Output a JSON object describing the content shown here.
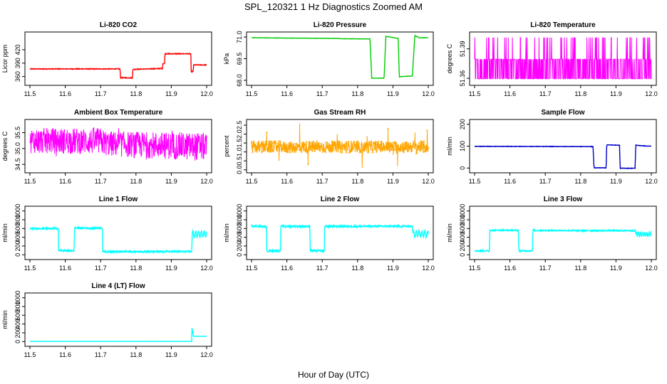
{
  "figure": {
    "title": "SPL_120321  1 Hz Diagnostics Zoomed AM",
    "xlabel": "Hour of Day (UTC)"
  },
  "chart_data": [
    {
      "type": "line",
      "title": "Li-820 CO2",
      "ylabel": "Licor ppm",
      "color": "#ff0000",
      "xlim": [
        11.5,
        12.0
      ],
      "ylim": [
        345,
        455
      ],
      "xticks": [
        "11.5",
        "11.6",
        "11.7",
        "11.8",
        "11.9",
        "12.0"
      ],
      "yticks": [
        {
          "v": 360,
          "label": "360"
        },
        {
          "v": 390,
          "label": "390"
        },
        {
          "v": 420,
          "label": "420"
        }
      ],
      "noise": 0.8,
      "segments": [
        [
          11.5,
          377
        ],
        [
          11.755,
          377
        ],
        [
          11.756,
          357
        ],
        [
          11.79,
          357
        ],
        [
          11.791,
          376
        ],
        [
          11.875,
          378
        ],
        [
          11.876,
          389
        ],
        [
          11.881,
          389
        ],
        [
          11.882,
          411
        ],
        [
          11.955,
          411
        ],
        [
          11.955,
          427
        ],
        [
          11.956,
          371
        ],
        [
          11.962,
          371
        ],
        [
          11.963,
          386
        ],
        [
          12.0,
          386
        ]
      ]
    },
    {
      "type": "line",
      "title": "Li-820 Pressure",
      "ylabel": "kPa",
      "color": "#00cc00",
      "xlim": [
        11.5,
        12.0
      ],
      "ylim": [
        67.8,
        71.2
      ],
      "xticks": [
        "11.5",
        "11.6",
        "11.7",
        "11.8",
        "11.9",
        "12.0"
      ],
      "yticks": [
        {
          "v": 68.0,
          "label": "68.0"
        },
        {
          "v": 69.5,
          "label": "69.5"
        },
        {
          "v": 71.0,
          "label": "71.0"
        }
      ],
      "noise": 0.01,
      "segments": [
        [
          11.5,
          70.95
        ],
        [
          11.75,
          70.9
        ],
        [
          11.751,
          70.88
        ],
        [
          11.835,
          70.87
        ],
        [
          11.84,
          68.15
        ],
        [
          11.875,
          68.15
        ],
        [
          11.88,
          71.05
        ],
        [
          11.915,
          70.9
        ],
        [
          11.918,
          68.25
        ],
        [
          11.955,
          68.3
        ],
        [
          11.962,
          71.1
        ],
        [
          11.975,
          70.95
        ],
        [
          12.0,
          70.95
        ]
      ]
    },
    {
      "type": "line",
      "title": "Li-820 Temperature",
      "ylabel": "degrees C",
      "color": "#ff00ff",
      "xlim": [
        11.5,
        12.0
      ],
      "ylim": [
        51.355,
        51.405
      ],
      "xticks": [
        "11.5",
        "11.6",
        "11.7",
        "11.8",
        "11.9",
        "12.0"
      ],
      "yticks": [
        {
          "v": 51.36,
          "label": "51.36"
        },
        {
          "v": 51.39,
          "label": "51.39"
        }
      ],
      "quantized": {
        "low": 51.3595,
        "mid": 51.3795,
        "high": 51.4015,
        "pHigh": 0.09,
        "pLow": 0.5
      }
    },
    {
      "type": "line",
      "title": "Ambient Box Temperature",
      "ylabel": "degrees C",
      "color": "#ff00ff",
      "xlim": [
        11.5,
        12.0
      ],
      "ylim": [
        34.3,
        35.85
      ],
      "xticks": [
        "11.5",
        "11.6",
        "11.7",
        "11.8",
        "11.9",
        "12.0"
      ],
      "yticks": [
        {
          "v": 34.5,
          "label": "34.5"
        },
        {
          "v": 35.0,
          "label": "35.0"
        },
        {
          "v": 35.5,
          "label": "35.5"
        }
      ],
      "band": [
        [
          11.5,
          34.85,
          35.65
        ],
        [
          11.7,
          34.8,
          35.65
        ],
        [
          11.72,
          34.75,
          35.55
        ],
        [
          12.0,
          34.6,
          35.5
        ]
      ]
    },
    {
      "type": "line",
      "title": "Gas Stream RH",
      "ylabel": "percent",
      "color": "#ffa500",
      "markers": true,
      "xlim": [
        11.5,
        12.0
      ],
      "ylim": [
        -0.05,
        2.7
      ],
      "xticks": [
        "11.5",
        "11.6",
        "11.7",
        "11.8",
        "11.9",
        "12.0"
      ],
      "yticks": [
        {
          "v": 0.0,
          "label": "0.0"
        },
        {
          "v": 0.5,
          "label": "0.5"
        },
        {
          "v": 1.0,
          "label": "1.0"
        },
        {
          "v": 1.5,
          "label": "1.5"
        },
        {
          "v": 2.0,
          "label": "2.0"
        },
        {
          "v": 2.5,
          "label": "2.5"
        }
      ],
      "band": [
        [
          11.5,
          0.95,
          1.6
        ],
        [
          12.0,
          0.95,
          1.6
        ]
      ],
      "spikes": [
        [
          11.543,
          2.1
        ],
        [
          11.578,
          0.5
        ],
        [
          11.636,
          2.6
        ],
        [
          11.66,
          0.3
        ],
        [
          11.742,
          2.0
        ],
        [
          11.813,
          0.1
        ],
        [
          11.827,
          1.9
        ],
        [
          11.886,
          2.3
        ],
        [
          11.913,
          0.2
        ],
        [
          11.962,
          2.1
        ],
        [
          11.997,
          2.2
        ]
      ]
    },
    {
      "type": "line",
      "title": "Sample Flow",
      "ylabel": "ml/min",
      "color": "#0000cc",
      "xlim": [
        11.5,
        12.0
      ],
      "ylim": [
        -12,
        212
      ],
      "xticks": [
        "11.5",
        "11.6",
        "11.7",
        "11.8",
        "11.9",
        "12.0"
      ],
      "yticks": [
        {
          "v": 0,
          "label": "0"
        },
        {
          "v": 100,
          "label": "100"
        },
        {
          "v": 200,
          "label": "200"
        }
      ],
      "noise": 1.0,
      "segments": [
        [
          11.5,
          99
        ],
        [
          11.835,
          98
        ],
        [
          11.838,
          1
        ],
        [
          11.872,
          1
        ],
        [
          11.874,
          106
        ],
        [
          11.91,
          104
        ],
        [
          11.912,
          -1
        ],
        [
          11.954,
          -1
        ],
        [
          11.956,
          104
        ],
        [
          11.99,
          100
        ],
        [
          12.0,
          100
        ]
      ]
    },
    {
      "type": "line",
      "title": "Line 1 Flow",
      "ylabel": "ml/min",
      "color": "#00ffff",
      "xlim": [
        11.5,
        12.0
      ],
      "ylim": [
        -60,
        1060
      ],
      "xticks": [
        "11.5",
        "11.6",
        "11.7",
        "11.8",
        "11.9",
        "12.0"
      ],
      "yticks": [
        {
          "v": 0,
          "label": "0"
        },
        {
          "v": 200,
          "label": "200"
        },
        {
          "v": 400,
          "label": "400"
        },
        {
          "v": 600,
          "label": "600"
        },
        {
          "v": 800,
          "label": "800"
        },
        {
          "v": 1000,
          "label": "1000"
        }
      ],
      "noise": 18,
      "segments": [
        [
          11.5,
          600
        ],
        [
          11.58,
          600
        ],
        [
          11.581,
          95
        ],
        [
          11.625,
          95
        ],
        [
          11.626,
          610
        ],
        [
          11.705,
          610
        ],
        [
          11.706,
          70
        ],
        [
          11.958,
          75
        ],
        [
          11.959,
          460
        ]
      ],
      "osc": {
        "from": 11.959,
        "to": 12.0,
        "base": 470,
        "amp": 70,
        "period": 0.008
      }
    },
    {
      "type": "line",
      "title": "Line 2 Flow",
      "ylabel": "ml/min",
      "color": "#00ffff",
      "xlim": [
        11.5,
        12.0
      ],
      "ylim": [
        -60,
        1060
      ],
      "xticks": [
        "11.5",
        "11.6",
        "11.7",
        "11.8",
        "11.9",
        "12.0"
      ],
      "yticks": [
        {
          "v": 0,
          "label": "0"
        },
        {
          "v": 200,
          "label": "200"
        },
        {
          "v": 400,
          "label": "400"
        },
        {
          "v": 600,
          "label": "600"
        },
        {
          "v": 800,
          "label": "800"
        },
        {
          "v": 1000,
          "label": "1000"
        }
      ],
      "noise": 22,
      "segments": [
        [
          11.5,
          660
        ],
        [
          11.542,
          640
        ],
        [
          11.543,
          90
        ],
        [
          11.582,
          90
        ],
        [
          11.583,
          650
        ],
        [
          11.665,
          650
        ],
        [
          11.666,
          90
        ],
        [
          11.706,
          90
        ],
        [
          11.707,
          650
        ],
        [
          11.955,
          650
        ],
        [
          11.956,
          470
        ]
      ],
      "osc": {
        "from": 11.956,
        "to": 12.0,
        "base": 480,
        "amp": 70,
        "period": 0.008
      }
    },
    {
      "type": "line",
      "title": "Line 3 Flow",
      "ylabel": "ml/min",
      "color": "#00ffff",
      "xlim": [
        11.5,
        12.0
      ],
      "ylim": [
        -60,
        1060
      ],
      "xticks": [
        "11.5",
        "11.6",
        "11.7",
        "11.8",
        "11.9",
        "12.0"
      ],
      "yticks": [
        {
          "v": 0,
          "label": "0"
        },
        {
          "v": 200,
          "label": "200"
        },
        {
          "v": 400,
          "label": "400"
        },
        {
          "v": 600,
          "label": "600"
        },
        {
          "v": 800,
          "label": "800"
        },
        {
          "v": 1000,
          "label": "1000"
        }
      ],
      "noise": 14,
      "segments": [
        [
          11.5,
          90
        ],
        [
          11.542,
          90
        ],
        [
          11.543,
          560
        ],
        [
          11.624,
          560
        ],
        [
          11.625,
          90
        ],
        [
          11.664,
          90
        ],
        [
          11.665,
          555
        ],
        [
          11.955,
          550
        ],
        [
          11.956,
          470
        ]
      ],
      "osc": {
        "from": 11.956,
        "to": 12.0,
        "base": 470,
        "amp": 45,
        "period": 0.006
      }
    },
    {
      "type": "line",
      "title": "Line 4 (LT) Flow",
      "ylabel": "ml/min",
      "color": "#00ffff",
      "xlim": [
        11.5,
        12.0
      ],
      "ylim": [
        -60,
        1060
      ],
      "xticks": [
        "11.5",
        "11.6",
        "11.7",
        "11.8",
        "11.9",
        "12.0"
      ],
      "yticks": [
        {
          "v": 0,
          "label": "0"
        },
        {
          "v": 200,
          "label": "200"
        },
        {
          "v": 400,
          "label": "400"
        },
        {
          "v": 600,
          "label": "600"
        },
        {
          "v": 800,
          "label": "800"
        },
        {
          "v": 1000,
          "label": "1000"
        }
      ],
      "noise": 2,
      "segments": [
        [
          11.5,
          3
        ],
        [
          11.958,
          3
        ],
        [
          11.958,
          330
        ],
        [
          11.961,
          200
        ],
        [
          11.963,
          120
        ],
        [
          12.0,
          120
        ]
      ]
    }
  ]
}
